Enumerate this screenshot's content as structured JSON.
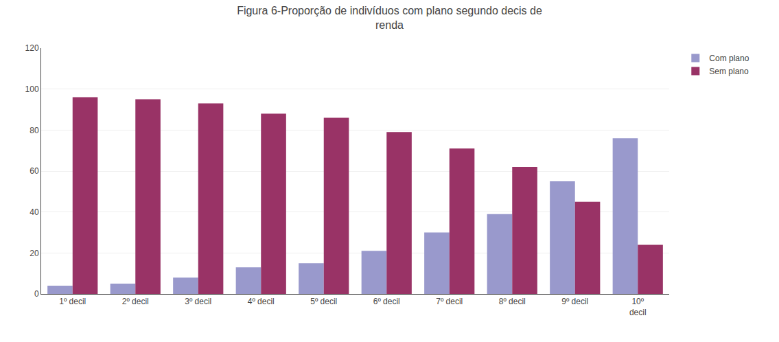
{
  "chart_data": {
    "type": "bar",
    "title": "Figura 6-Proporção de indivíduos com plano segundo decis de\nrenda",
    "categories": [
      "1º decil",
      "2º decil",
      "3º decil",
      "4º decil",
      "5º decil",
      "6º decil",
      "7º decil",
      "8º decil",
      "9º decil",
      "10º\ndecil"
    ],
    "series": [
      {
        "name": "Com plano",
        "color": "#9999cc",
        "values": [
          4,
          5,
          8,
          13,
          15,
          21,
          30,
          39,
          55,
          76
        ]
      },
      {
        "name": "Sem plano",
        "color": "#993366",
        "values": [
          96,
          95,
          93,
          88,
          86,
          79,
          71,
          62,
          45,
          24
        ]
      }
    ],
    "ylim": [
      0,
      120
    ],
    "yticks": [
      0,
      20,
      40,
      60,
      80,
      100,
      120
    ],
    "grid": true,
    "legend": "right"
  }
}
